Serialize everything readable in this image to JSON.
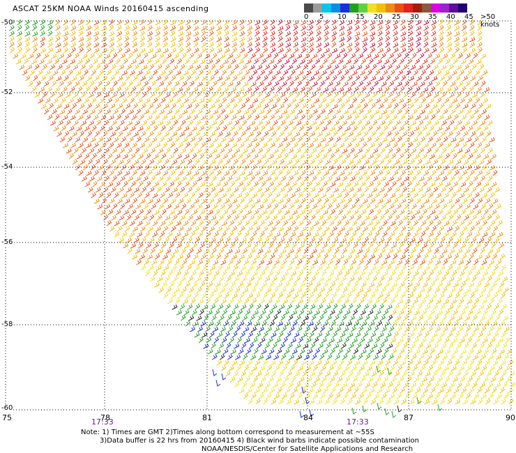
{
  "title": "ASCAT 25KM NOAA Winds 20160415 ascending",
  "legend": {
    "colors": [
      "#4a4a4a",
      "#9b9b9b",
      "#00c8e8",
      "#0a8fe6",
      "#1a2fd8",
      "#20a020",
      "#60d040",
      "#f0e020",
      "#f2c000",
      "#f08a10",
      "#ea5014",
      "#e0241e",
      "#a02010",
      "#8a5a3a",
      "#e000e8",
      "#a020d0",
      "#5a109a",
      "#200070"
    ],
    "labels": [
      "0",
      "5",
      "10",
      "15",
      "20",
      "25",
      "30",
      "35",
      "40",
      "45",
      ">50 knots"
    ]
  },
  "grid": {
    "lon_labels": [
      "75",
      "78",
      "81",
      "84",
      "87",
      "90"
    ],
    "lat_labels": [
      "-50",
      "-52",
      "-54",
      "-56",
      "-58",
      "-60"
    ]
  },
  "times": [
    "17:33",
    "17:33"
  ],
  "notes": [
    "Note: 1) Times are GMT 2)Times along bottom correspond to measurement at ~55S",
    "3)Data buffer is 22 hrs from 20160415 4) Black wind barbs indicate possible contamination",
    "NOAA/NESDIS/Center for Satellite Applications and Research"
  ]
}
